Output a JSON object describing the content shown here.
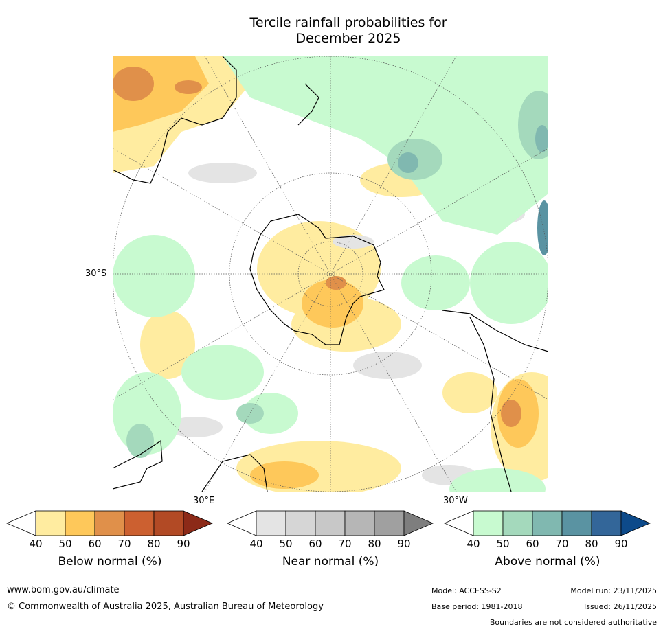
{
  "title": {
    "line1": "Tercile rainfall probabilities for",
    "line2": "December 2025"
  },
  "map": {
    "projection": "south-polar-stereographic",
    "lat_label": "30°S",
    "lon_labels": {
      "east": "30°E",
      "west": "30°W"
    }
  },
  "colorbars": [
    {
      "id": "below",
      "title": "Below normal (%)",
      "ticks": [
        "40",
        "50",
        "60",
        "70",
        "80",
        "90"
      ],
      "colors": [
        "#ffeca0",
        "#fec85a",
        "#e0904a",
        "#cc6030",
        "#b24a25",
        "#8c2a18"
      ]
    },
    {
      "id": "near",
      "title": "Near normal (%)",
      "ticks": [
        "40",
        "50",
        "60",
        "70",
        "80",
        "90"
      ],
      "colors": [
        "#e4e4e4",
        "#d6d6d6",
        "#c8c8c8",
        "#b6b6b6",
        "#a0a0a0",
        "#7e7e7e"
      ]
    },
    {
      "id": "above",
      "title": "Above normal (%)",
      "ticks": [
        "40",
        "50",
        "60",
        "70",
        "80",
        "90"
      ],
      "colors": [
        "#c8fad0",
        "#a4d9bc",
        "#80b8b0",
        "#5a93a2",
        "#336699",
        "#0d4a8a"
      ]
    }
  ],
  "footer": {
    "website": "www.bom.gov.au/climate",
    "copyright": "© Commonwealth of Australia 2025, Australian Bureau of Meteorology",
    "model": "Model: ACCESS-S2",
    "base_period": "Base period: 1981-2018",
    "model_run": "Model run: 23/11/2025",
    "issued": "Issued: 26/11/2025",
    "disclaimer": "Boundaries are not considered authoritative"
  }
}
